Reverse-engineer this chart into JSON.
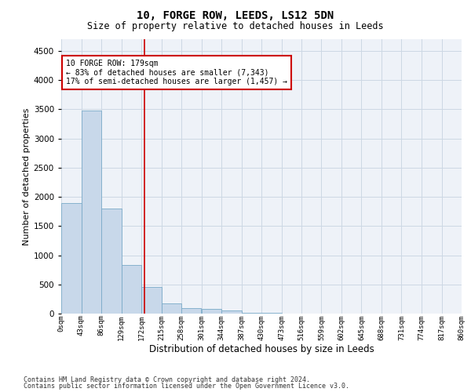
{
  "title": "10, FORGE ROW, LEEDS, LS12 5DN",
  "subtitle": "Size of property relative to detached houses in Leeds",
  "xlabel": "Distribution of detached houses by size in Leeds",
  "ylabel": "Number of detached properties",
  "bar_color": "#c8d8ea",
  "bar_edge_color": "#7aaac8",
  "grid_color": "#ccd8e4",
  "vline_color": "#cc0000",
  "vline_x": 179,
  "annotation_text": "10 FORGE ROW: 179sqm\n← 83% of detached houses are smaller (7,343)\n17% of semi-detached houses are larger (1,457) →",
  "annotation_box_facecolor": "#ffffff",
  "annotation_box_edgecolor": "#cc0000",
  "footnote1": "Contains HM Land Registry data © Crown copyright and database right 2024.",
  "footnote2": "Contains public sector information licensed under the Open Government Licence v3.0.",
  "bin_edges": [
    0,
    43,
    86,
    129,
    172,
    215,
    258,
    301,
    344,
    387,
    430,
    473,
    516,
    559,
    602,
    645,
    688,
    731,
    774,
    817,
    860
  ],
  "bar_heights": [
    1900,
    3480,
    1800,
    830,
    450,
    175,
    100,
    75,
    50,
    20,
    10,
    5,
    2,
    1,
    1,
    0,
    0,
    0,
    0,
    0
  ],
  "ylim": [
    0,
    4700
  ],
  "yticks": [
    0,
    500,
    1000,
    1500,
    2000,
    2500,
    3000,
    3500,
    4000,
    4500
  ],
  "background_color": "#eef2f8"
}
